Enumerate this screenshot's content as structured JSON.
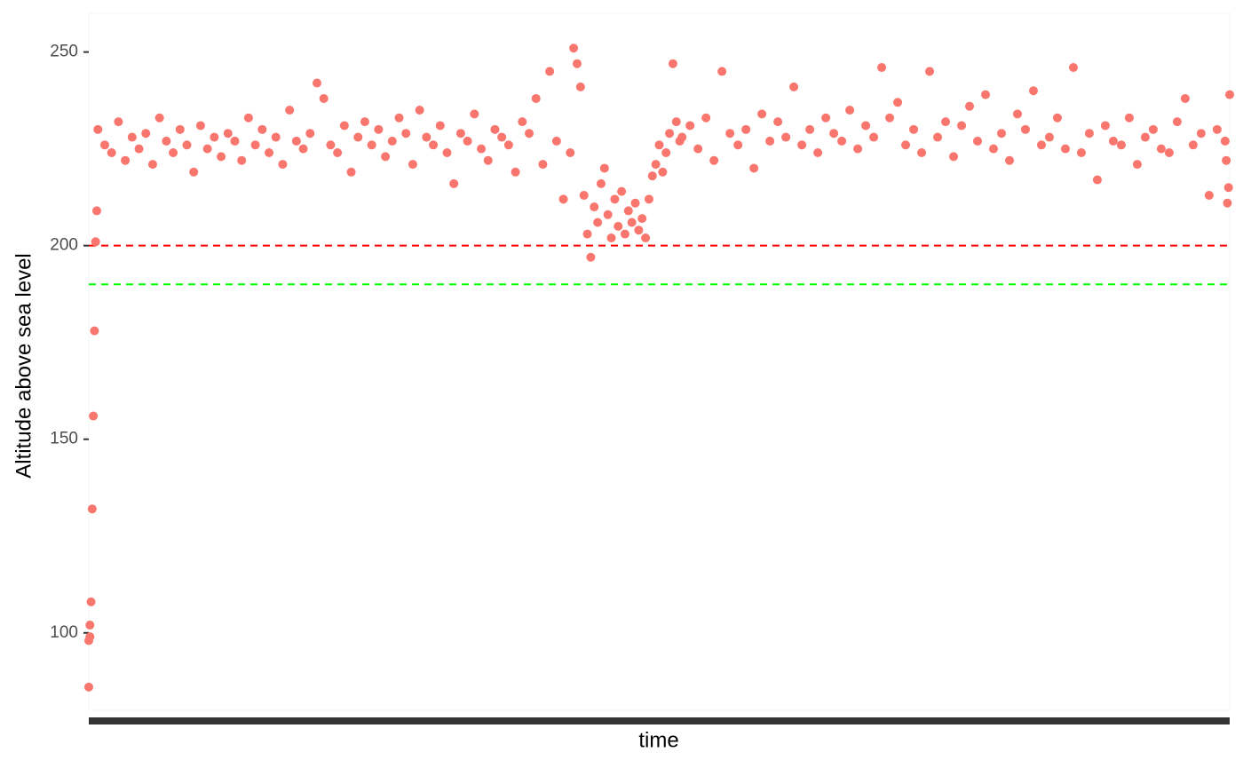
{
  "chart_data": {
    "type": "scatter",
    "x_label": "time",
    "y_label": "Altitude above sea level",
    "xlim": [
      0,
      1000
    ],
    "ylim": [
      80,
      260
    ],
    "yticks": [
      100,
      150,
      200,
      250
    ],
    "color": "#f8766d",
    "hlines": [
      {
        "value": 200,
        "color": "#ff0000"
      },
      {
        "value": 190,
        "color": "#00ff00"
      }
    ],
    "x": [
      0,
      0,
      1,
      1,
      2,
      3,
      4,
      5,
      6,
      7,
      8,
      14,
      20,
      26,
      32,
      38,
      44,
      50,
      56,
      62,
      68,
      74,
      80,
      86,
      92,
      98,
      104,
      110,
      116,
      122,
      128,
      134,
      140,
      146,
      152,
      158,
      164,
      170,
      176,
      182,
      188,
      194,
      200,
      206,
      212,
      218,
      224,
      230,
      236,
      242,
      248,
      254,
      260,
      266,
      272,
      278,
      284,
      290,
      296,
      302,
      308,
      314,
      320,
      326,
      332,
      338,
      344,
      350,
      356,
      362,
      368,
      374,
      380,
      386,
      392,
      398,
      404,
      410,
      416,
      422,
      425,
      428,
      431,
      434,
      437,
      440,
      443,
      446,
      449,
      452,
      455,
      458,
      461,
      464,
      467,
      470,
      473,
      476,
      479,
      482,
      485,
      488,
      491,
      494,
      497,
      500,
      503,
      506,
      509,
      512,
      515,
      518,
      520,
      527,
      534,
      541,
      548,
      555,
      562,
      569,
      576,
      583,
      590,
      597,
      604,
      611,
      618,
      625,
      632,
      639,
      646,
      653,
      660,
      667,
      674,
      681,
      688,
      695,
      702,
      709,
      716,
      723,
      730,
      737,
      744,
      751,
      758,
      765,
      772,
      779,
      786,
      793,
      800,
      807,
      814,
      821,
      828,
      835,
      842,
      849,
      856,
      863,
      870,
      877,
      884,
      891,
      898,
      905,
      912,
      919,
      926,
      933,
      940,
      947,
      954,
      961,
      968,
      975,
      982,
      989,
      996,
      997,
      998,
      999,
      1000
    ],
    "values": [
      86,
      98,
      99,
      102,
      108,
      132,
      156,
      178,
      201,
      209,
      230,
      226,
      224,
      232,
      222,
      228,
      225,
      229,
      221,
      233,
      227,
      224,
      230,
      226,
      219,
      231,
      225,
      228,
      223,
      229,
      227,
      222,
      233,
      226,
      230,
      224,
      228,
      221,
      235,
      227,
      225,
      229,
      242,
      238,
      226,
      224,
      231,
      219,
      228,
      232,
      226,
      230,
      223,
      227,
      233,
      229,
      221,
      235,
      228,
      226,
      231,
      224,
      216,
      229,
      227,
      234,
      225,
      222,
      230,
      228,
      226,
      219,
      232,
      229,
      238,
      221,
      245,
      227,
      212,
      224,
      251,
      247,
      241,
      213,
      203,
      197,
      210,
      206,
      216,
      220,
      208,
      202,
      212,
      205,
      214,
      203,
      209,
      206,
      211,
      204,
      207,
      202,
      212,
      218,
      221,
      226,
      219,
      224,
      229,
      247,
      232,
      227,
      228,
      231,
      225,
      233,
      222,
      245,
      229,
      226,
      230,
      220,
      234,
      227,
      232,
      228,
      241,
      226,
      230,
      224,
      233,
      229,
      227,
      235,
      225,
      231,
      228,
      246,
      233,
      237,
      226,
      230,
      224,
      245,
      228,
      232,
      223,
      231,
      236,
      227,
      239,
      225,
      229,
      222,
      234,
      230,
      240,
      226,
      228,
      233,
      225,
      246,
      224,
      229,
      217,
      231,
      227,
      226,
      233,
      221,
      228,
      230,
      225,
      224,
      232,
      238,
      226,
      229,
      213,
      230,
      227,
      222,
      211,
      215,
      239
    ]
  }
}
